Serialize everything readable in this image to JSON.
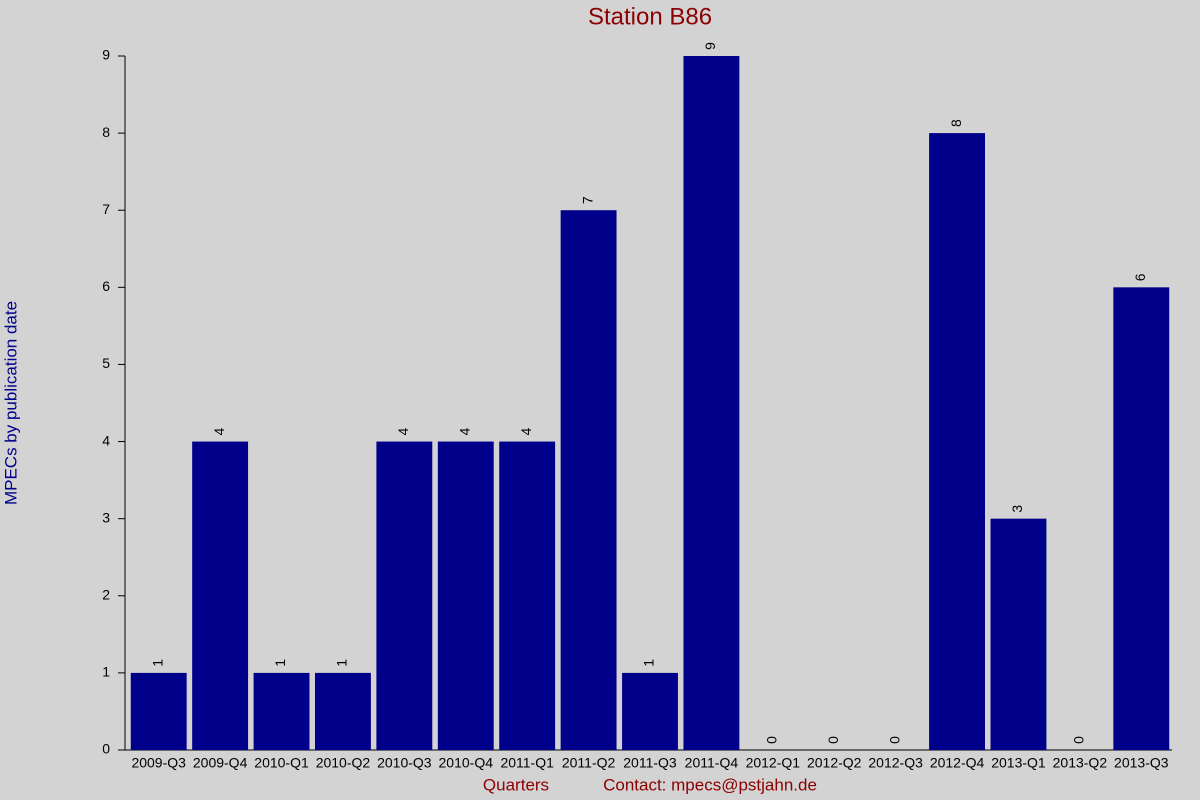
{
  "chart_data": {
    "type": "bar",
    "title": "Station B86",
    "x_label": "Quarters",
    "annotation": "Contact: mpecs@pstjahn.de",
    "y_label": "MPECs by publication date",
    "categories": [
      "2009-Q3",
      "2009-Q4",
      "2010-Q1",
      "2010-Q2",
      "2010-Q3",
      "2010-Q4",
      "2011-Q1",
      "2011-Q2",
      "2011-Q3",
      "2011-Q4",
      "2012-Q1",
      "2012-Q2",
      "2012-Q3",
      "2012-Q4",
      "2013-Q1",
      "2013-Q2",
      "2013-Q3"
    ],
    "values": [
      1,
      4,
      1,
      1,
      4,
      4,
      4,
      7,
      1,
      9,
      0,
      0,
      0,
      8,
      3,
      0,
      6
    ],
    "color": "#00008b",
    "ylim": [
      0,
      9
    ],
    "yticks": [
      0,
      1,
      2,
      3,
      4,
      5,
      6,
      7,
      8,
      9
    ],
    "grid": false
  }
}
